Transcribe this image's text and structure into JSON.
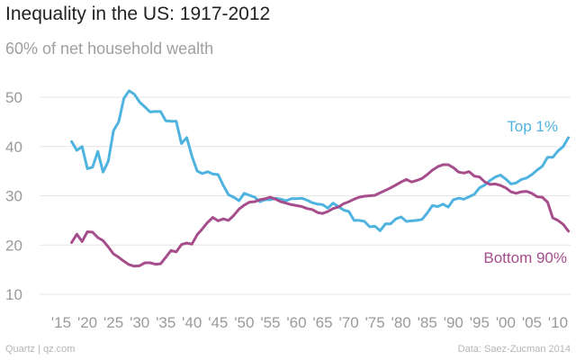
{
  "header": {
    "title": "Inequality in the US: 1917-2012",
    "subtitle": "60% of net household wealth"
  },
  "footer": {
    "source": "Quartz | qz.com",
    "credit": "Data: Saez-Zucman 2014"
  },
  "colors": {
    "top1": "#4fb3e0",
    "bottom90": "#a64d8c",
    "grid": "#e6e6e6",
    "axis": "#9a9a9a"
  },
  "chart_data": {
    "type": "line",
    "title": "Inequality in the US: 1917-2012",
    "ylabel": "60% of net household wealth",
    "xlabel": "",
    "xlim": [
      1917,
      2012
    ],
    "ylim": [
      10,
      55
    ],
    "yticks": [
      10,
      20,
      30,
      40,
      50
    ],
    "xtick_values": [
      1915,
      1920,
      1925,
      1930,
      1935,
      1940,
      1945,
      1950,
      1955,
      1960,
      1965,
      1970,
      1975,
      1980,
      1985,
      1990,
      1995,
      2000,
      2005,
      2010
    ],
    "xtick_labels": [
      "'15",
      "'20",
      "'25",
      "'30",
      "'35",
      "'40",
      "'45",
      "'50",
      "'55",
      "'60",
      "'65",
      "'70",
      "'75",
      "'80",
      "'85",
      "'90",
      "'95",
      "'00",
      "'05",
      "'10"
    ],
    "series": [
      {
        "name": "Top 1%",
        "color": "#4fb3e0",
        "x": [
          1917,
          1918,
          1919,
          1920,
          1921,
          1922,
          1923,
          1924,
          1925,
          1926,
          1927,
          1928,
          1929,
          1930,
          1931,
          1932,
          1933,
          1934,
          1935,
          1936,
          1937,
          1938,
          1939,
          1940,
          1941,
          1942,
          1943,
          1944,
          1945,
          1946,
          1947,
          1948,
          1949,
          1950,
          1951,
          1952,
          1953,
          1954,
          1955,
          1956,
          1957,
          1958,
          1959,
          1960,
          1961,
          1962,
          1963,
          1964,
          1965,
          1966,
          1967,
          1968,
          1969,
          1970,
          1971,
          1972,
          1973,
          1974,
          1975,
          1976,
          1977,
          1978,
          1979,
          1980,
          1981,
          1982,
          1983,
          1984,
          1985,
          1986,
          1987,
          1988,
          1989,
          1990,
          1991,
          1992,
          1993,
          1994,
          1995,
          1996,
          1997,
          1998,
          1999,
          2000,
          2001,
          2002,
          2003,
          2004,
          2005,
          2006,
          2007,
          2008,
          2009,
          2010,
          2011,
          2012
        ],
        "values": [
          41,
          39.2,
          40,
          35.5,
          35.8,
          39,
          34.8,
          37,
          43.2,
          45,
          49.8,
          51.3,
          50.6,
          49,
          48,
          47,
          47.1,
          47.1,
          45.2,
          45.1,
          45.1,
          40.6,
          41.8,
          38,
          35,
          34.5,
          34.9,
          34.4,
          34.3,
          32.1,
          30.2,
          29.7,
          29,
          30.5,
          30.1,
          29.7,
          28.8,
          29.2,
          29.2,
          29.5,
          29.3,
          29,
          29.4,
          29.4,
          29.5,
          29.1,
          28.6,
          28.3,
          28.2,
          27.5,
          28.5,
          27.8,
          27.1,
          26.8,
          25,
          25,
          24.8,
          23.7,
          23.8,
          22.9,
          24.3,
          24.3,
          25.3,
          25.7,
          24.8,
          24.9,
          25,
          25.2,
          26.5,
          28,
          27.8,
          28.3,
          27.7,
          29.2,
          29.5,
          29.3,
          29.8,
          30.3,
          31.6,
          32.2,
          33.1,
          33.8,
          34.2,
          33.4,
          32.4,
          32.6,
          33.3,
          33.6,
          34.3,
          35.2,
          36,
          37.8,
          37.8,
          39.1,
          40,
          41.8
        ]
      },
      {
        "name": "Bottom 90%",
        "color": "#a64d8c",
        "x": [
          1917,
          1918,
          1919,
          1920,
          1921,
          1922,
          1923,
          1924,
          1925,
          1926,
          1927,
          1928,
          1929,
          1930,
          1931,
          1932,
          1933,
          1934,
          1935,
          1936,
          1937,
          1938,
          1939,
          1940,
          1941,
          1942,
          1943,
          1944,
          1945,
          1946,
          1947,
          1948,
          1949,
          1950,
          1951,
          1952,
          1953,
          1954,
          1955,
          1956,
          1957,
          1958,
          1959,
          1960,
          1961,
          1962,
          1963,
          1964,
          1965,
          1966,
          1967,
          1968,
          1969,
          1970,
          1971,
          1972,
          1973,
          1974,
          1975,
          1976,
          1977,
          1978,
          1979,
          1980,
          1981,
          1982,
          1983,
          1984,
          1985,
          1986,
          1987,
          1988,
          1989,
          1990,
          1991,
          1992,
          1993,
          1994,
          1995,
          1996,
          1997,
          1998,
          1999,
          2000,
          2001,
          2002,
          2003,
          2004,
          2005,
          2006,
          2007,
          2008,
          2009,
          2010,
          2011,
          2012
        ],
        "values": [
          20.5,
          22.2,
          20.7,
          22.7,
          22.6,
          21.5,
          20.9,
          19.6,
          18.2,
          17.5,
          16.7,
          16,
          15.7,
          15.8,
          16.4,
          16.4,
          16.1,
          16.2,
          17.5,
          18.9,
          18.6,
          20.1,
          20.4,
          20.2,
          22.1,
          23.3,
          24.6,
          25.6,
          24.9,
          25.3,
          25,
          26,
          27.3,
          28.1,
          28.7,
          28.8,
          29.2,
          29.4,
          29.7,
          29.3,
          28.8,
          28.5,
          28.2,
          28,
          27.8,
          27.4,
          27.2,
          26.6,
          26.4,
          26.8,
          27.4,
          27.7,
          28.4,
          28.8,
          29.3,
          29.7,
          29.9,
          30,
          30.1,
          30.6,
          31.1,
          31.6,
          32.2,
          32.8,
          33.3,
          32.8,
          33.1,
          33.5,
          34.3,
          35.2,
          35.9,
          36.3,
          36.3,
          35.7,
          34.8,
          34.6,
          34.9,
          34,
          33.8,
          32.8,
          32.3,
          32.4,
          32.1,
          31.6,
          30.8,
          30.5,
          30.8,
          30.9,
          30.5,
          29.8,
          29.7,
          28.7,
          25.5,
          25,
          24.2,
          22.8
        ]
      }
    ],
    "annotations": [
      {
        "series": "Top 1%",
        "text": "Top 1%"
      },
      {
        "series": "Bottom 90%",
        "text": "Bottom 90%"
      }
    ]
  }
}
